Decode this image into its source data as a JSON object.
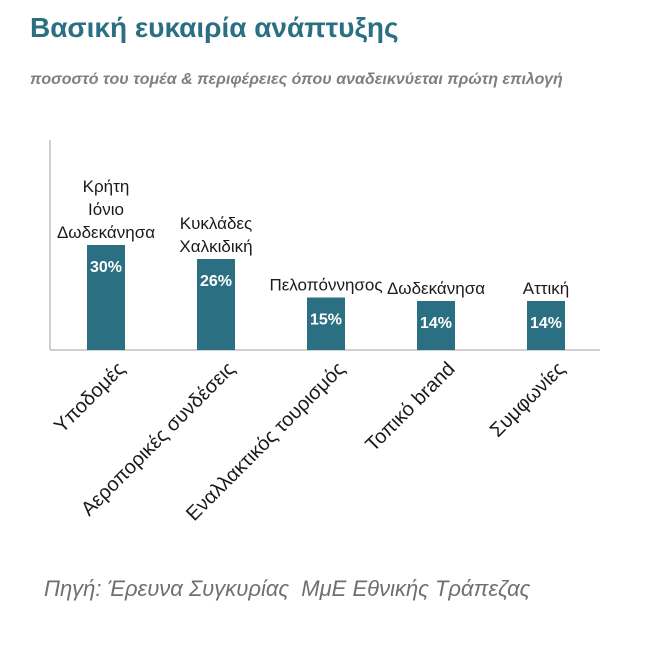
{
  "title": "Βασική ευκαιρία ανάπτυξης",
  "subtitle": "ποσοστό του τομέα & περιφέρειες όπου αναδεικνύεται πρώτη επιλογή",
  "source": "Πηγή: Έρευνα Συγκυρίας  ΜμΕ Εθνικής Τράπεζας",
  "colors": {
    "bar": "#2a6f82",
    "title": "#2a6f82",
    "axis": "#bfbfbf"
  },
  "chart_data": {
    "type": "bar",
    "categories": [
      "Υποδομές",
      "Αεροπορικές συνδέσεις",
      "Εναλλακτικός τουρισμός",
      "Τοπικό brand",
      "Συμφωνίες"
    ],
    "values": [
      30,
      26,
      15,
      14,
      14
    ],
    "data_labels": [
      "30%",
      "26%",
      "15%",
      "14%",
      "14%"
    ],
    "regions": [
      [
        "Κρήτη",
        "Ιόνιο",
        "Δωδεκάνησα"
      ],
      [
        "Κυκλάδες",
        "Χαλκιδική"
      ],
      [
        "Πελοπόννησος"
      ],
      [
        "Δωδεκάνησα"
      ],
      [
        "Αττική"
      ]
    ],
    "ylim": [
      0,
      60
    ],
    "grid": false,
    "legend": "none"
  }
}
